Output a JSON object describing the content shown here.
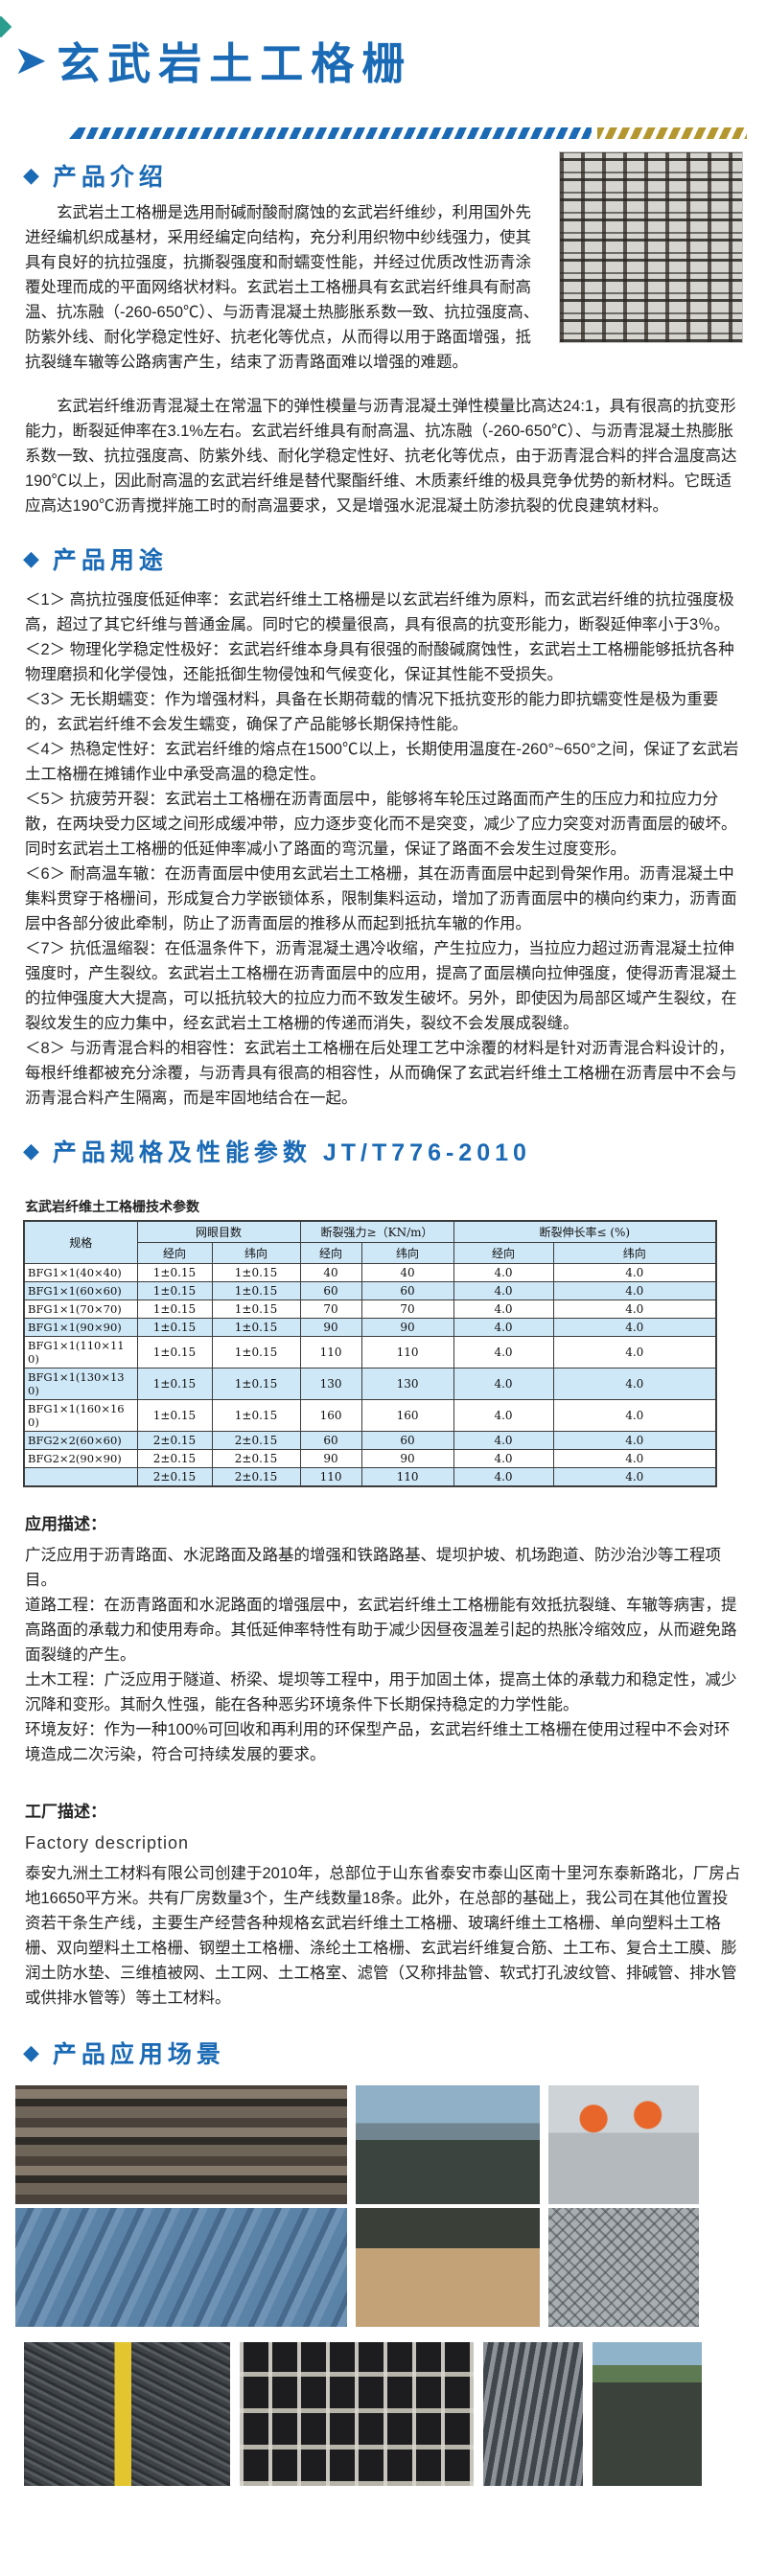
{
  "colors": {
    "accent_blue": "#1a6ab5",
    "divider_gold": "#b5972f",
    "table_header_bg": "#cfe8f7",
    "table_alt_row_bg": "#cfe8f7",
    "teal_corner": "#2a9d8f"
  },
  "header": {
    "title": "玄武岩土工格栅"
  },
  "intro": {
    "heading": "产品介绍",
    "para1": "玄武岩土工格栅是选用耐碱耐酸耐腐蚀的玄武岩纤维纱，利用国外先进经编机织成基材，采用经编定向结构，充分利用织物中纱线强力，使其具有良好的抗拉强度，抗撕裂强度和耐蠕变性能，并经过优质改性沥青涂覆处理而成的平面网络状材料。玄武岩土工格栅具有玄武岩纤维具有耐高温、抗冻融（-260-650℃）、与沥青混凝土热膨胀系数一致、抗拉强度高、防紫外线、耐化学稳定性好、抗老化等优点，从而得以用于路面增强，抵抗裂缝车辙等公路病害产生，结束了沥青路面难以增强的难题。",
    "para2": "玄武岩纤维沥青混凝土在常温下的弹性模量与沥青混凝土弹性模量比高达24:1，具有很高的抗变形能力，断裂延伸率在3.1%左右。玄武岩纤维具有耐高温、抗冻融（-260-650℃）、与沥青混凝土热膨胀系数一致、抗拉强度高、防紫外线、耐化学稳定性好、抗老化等优点，由于沥青混合料的拌合温度高达190℃以上，因此耐高温的玄武岩纤维是替代聚酯纤维、木质素纤维的极具竞争优势的新材料。它既适应高达190℃沥青搅拌施工时的耐高温要求，又是增强水泥混凝土防渗抗裂的优良建筑材料。",
    "photo_name": "geogrid-mesh-product-photo"
  },
  "uses": {
    "heading": "产品用途",
    "items": [
      "＜1＞ 高抗拉强度低延伸率：玄武岩纤维土工格栅是以玄武岩纤维为原料，而玄武岩纤维的抗拉强度极高，超过了其它纤维与普通金属。同时它的模量很高，具有很高的抗变形能力，断裂延伸率小于3％。",
      "＜2＞ 物理化学稳定性极好：玄武岩纤维本身具有很强的耐酸碱腐蚀性，玄武岩土工格栅能够抵抗各种物理磨损和化学侵蚀，还能抵御生物侵蚀和气候变化，保证其性能不受损失。",
      "＜3＞ 无长期蠕变：作为增强材料，具备在长期荷载的情况下抵抗变形的能力即抗蠕变性是极为重要的，玄武岩纤维不会发生蠕变，确保了产品能够长期保持性能。",
      "＜4＞ 热稳定性好：玄武岩纤维的熔点在1500℃以上，长期使用温度在-260°~650°之间，保证了玄武岩土工格栅在摊铺作业中承受高温的稳定性。",
      "＜5＞ 抗疲劳开裂：玄武岩土工格栅在沥青面层中，能够将车轮压过路面而产生的压应力和拉应力分散，在两块受力区域之间形成缓冲带，应力逐步变化而不是突变，减少了应力突变对沥青面层的破坏。同时玄武岩土工格栅的低延伸率减小了路面的弯沉量，保证了路面不会发生过度变形。",
      "＜6＞ 耐高温车辙：在沥青面层中使用玄武岩土工格栅，其在沥青面层中起到骨架作用。沥青混凝土中集料贯穿于格栅间，形成复合力学嵌锁体系，限制集料运动，增加了沥青面层中的横向约束力，沥青面层中各部分彼此牵制，防止了沥青面层的推移从而起到抵抗车辙的作用。",
      "＜7＞ 抗低温缩裂：在低温条件下，沥青混凝土遇冷收缩，产生拉应力，当拉应力超过沥青混凝土拉伸强度时，产生裂纹。玄武岩土工格栅在沥青面层中的应用，提高了面层横向拉伸强度，使得沥青混凝土的拉伸强度大大提高，可以抵抗较大的拉应力而不致发生破坏。另外，即使因为局部区域产生裂纹，在裂纹发生的应力集中，经玄武岩土工格栅的传递而消失，裂纹不会发展成裂缝。",
      "＜8＞ 与沥青混合料的相容性：玄武岩土工格栅在后处理工艺中涂覆的材料是针对沥青混合料设计的，每根纤维都被充分涂覆，与沥青具有很高的相容性，从而确保了玄武岩纤维土工格栅在沥青层中不会与沥青混合料产生隔离，而是牢固地结合在一起。"
    ]
  },
  "specs": {
    "heading": "产品规格及性能参数 JT/T776-2010",
    "table": {
      "title": "玄武岩纤维土工格栅技术参数",
      "spec_col": "规格",
      "groups": [
        {
          "label": "网眼目数",
          "sub": [
            "经向",
            "纬向"
          ]
        },
        {
          "label": "断裂强力≥（KN/m）",
          "sub": [
            "经向",
            "纬向"
          ]
        },
        {
          "label": "断裂伸长率≤ (%)",
          "sub": [
            "经向",
            "纬向"
          ]
        }
      ],
      "rows": [
        [
          "BFG1×1(40×40)",
          "1±0.15",
          "1±0.15",
          "40",
          "40",
          "4.0",
          "4.0"
        ],
        [
          "BFG1×1(60×60)",
          "1±0.15",
          "1±0.15",
          "60",
          "60",
          "4.0",
          "4.0"
        ],
        [
          "BFG1×1(70×70)",
          "1±0.15",
          "1±0.15",
          "70",
          "70",
          "4.0",
          "4.0"
        ],
        [
          "BFG1×1(90×90)",
          "1±0.15",
          "1±0.15",
          "90",
          "90",
          "4.0",
          "4.0"
        ],
        [
          "BFG1×1(110×110)",
          "1±0.15",
          "1±0.15",
          "110",
          "110",
          "4.0",
          "4.0"
        ],
        [
          "BFG1×1(130×130)",
          "1±0.15",
          "1±0.15",
          "130",
          "130",
          "4.0",
          "4.0"
        ],
        [
          "BFG1×1(160×160)",
          "1±0.15",
          "1±0.15",
          "160",
          "160",
          "4.0",
          "4.0"
        ],
        [
          "BFG2×2(60×60)",
          "2±0.15",
          "2±0.15",
          "60",
          "60",
          "4.0",
          "4.0"
        ],
        [
          "BFG2×2(90×90)",
          "2±0.15",
          "2±0.15",
          "90",
          "90",
          "4.0",
          "4.0"
        ],
        [
          "",
          "2±0.15",
          "2±0.15",
          "110",
          "110",
          "4.0",
          "4.0"
        ]
      ]
    }
  },
  "application": {
    "heading": "应用描述：",
    "para_general": "广泛应用于沥青路面、水泥路面及路基的增强和铁路路基、堤坝护坡、机场跑道、防沙治沙等工程项目。",
    "para_road": "道路工程：在沥青路面和水泥路面的增强层中，玄武岩纤维土工格栅能有效抵抗裂缝、车辙等病害，提高路面的承载力和使用寿命。其低延伸率特性有助于减少因昼夜温差引起的热胀冷缩效应，从而避免路面裂缝的产生。",
    "para_civil": "土木工程：广泛应用于隧道、桥梁、堤坝等工程中，用于加固土体，提高土体的承载力和稳定性，减少沉降和变形。其耐久性强，能在各种恶劣环境条件下长期保持稳定的力学性能。",
    "para_env": "环境友好：作为一种100%可回收和再利用的环保型产品，玄武岩纤维土工格栅在使用过程中不会对环境造成二次污染，符合可持续发展的要求。"
  },
  "factory": {
    "heading_zh": "工厂描述：",
    "heading_en": "Factory description",
    "para": "泰安九洲土工材料有限公司创建于2010年，总部位于山东省泰安市泰山区南十里河东泰新路北，厂房占地16650平方米。共有厂房数量3个，生产线数量18条。此外，在总部的基础上，我公司在其他位置投资若干条生产线，主要生产经营各种规格玄武岩纤维土工格栅、玻璃纤维土工格栅、单向塑料土工格栅、双向塑料土工格栅、钢塑土工格栅、涤纶土工格栅、玄武岩纤维复合筋、土工布、复合土工膜、膨润土防水垫、三维植被网、土工网、土工格室、滤管（又称排盐管、软式打孔波纹管、排碱管、排水管或供排水管等）等土工材料。"
  },
  "scenes": {
    "heading": "产品应用场景",
    "photos_row1": [
      "weaving-machine-photo",
      "mesh-bags-sky-photo",
      "workers-concrete-photo"
    ],
    "photos_row2": [
      "blue-pipes-photo",
      "bags-on-sand-photo",
      "grey-mesh-photo"
    ],
    "photos_row3": [
      "asphalt-tape-measure-photo",
      "black-grid-closeup-photo",
      "steel-roller-photo",
      "mesh-bags-field-photo"
    ]
  }
}
